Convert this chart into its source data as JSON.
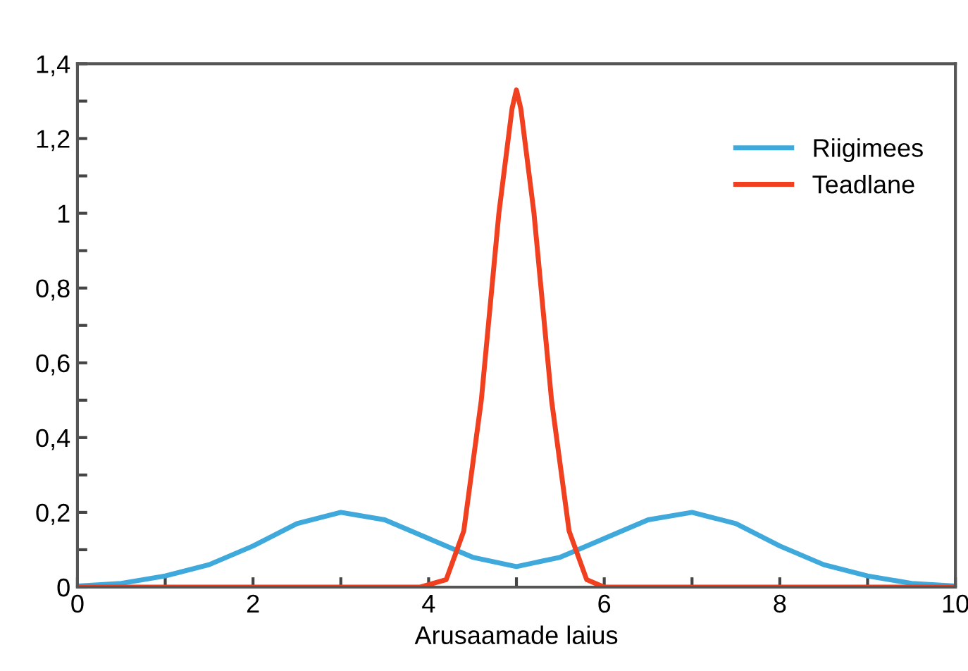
{
  "chart_data": {
    "type": "line",
    "xlabel": "Arusaamade laius",
    "xlim": [
      0,
      10
    ],
    "ylim": [
      0,
      1.4
    ],
    "xticks": [
      0,
      {
        "value": 1,
        "label": null
      },
      2,
      {
        "value": 3,
        "label": null
      },
      4,
      {
        "value": 5,
        "label": null
      },
      6,
      {
        "value": 7,
        "label": null
      },
      8,
      {
        "value": 9,
        "label": null
      },
      10
    ],
    "yticks": [
      0,
      {
        "value": 0.1,
        "label": null
      },
      {
        "value": 0.2,
        "label": "0,2"
      },
      {
        "value": 0.3,
        "label": null
      },
      {
        "value": 0.4,
        "label": "0,4"
      },
      {
        "value": 0.5,
        "label": null
      },
      {
        "value": 0.6,
        "label": "0,6"
      },
      {
        "value": 0.7,
        "label": null
      },
      {
        "value": 0.8,
        "label": "0,8"
      },
      {
        "value": 0.9,
        "label": null
      },
      1,
      {
        "value": 1.1,
        "label": null
      },
      {
        "value": 1.2,
        "label": "1,2"
      },
      {
        "value": 1.3,
        "label": null
      },
      {
        "value": 1.4,
        "label": "1,4"
      }
    ],
    "grid": false,
    "legend": "right",
    "marker": "none",
    "line_style": "solid",
    "series": [
      {
        "name": "Riigimees",
        "color": "#3fa9dc",
        "x": [
          0,
          0.5,
          1,
          1.5,
          2,
          2.5,
          3,
          3.5,
          4,
          4.5,
          5,
          5.5,
          6,
          6.5,
          7,
          7.5,
          8,
          8.5,
          9,
          9.5,
          10
        ],
        "values": [
          0.003,
          0.01,
          0.03,
          0.06,
          0.11,
          0.17,
          0.2,
          0.18,
          0.13,
          0.08,
          0.055,
          0.08,
          0.13,
          0.18,
          0.2,
          0.17,
          0.11,
          0.06,
          0.03,
          0.01,
          0.003
        ]
      },
      {
        "name": "Teadlane",
        "color": "#f0401f",
        "x": [
          0,
          2,
          3.9,
          4.2,
          4.4,
          4.6,
          4.8,
          4.95,
          5,
          5.05,
          5.2,
          5.4,
          5.6,
          5.8,
          6,
          8,
          10
        ],
        "values": [
          0,
          0,
          0,
          0.02,
          0.15,
          0.5,
          1.0,
          1.28,
          1.33,
          1.28,
          1.0,
          0.5,
          0.15,
          0.02,
          0,
          0,
          0
        ]
      }
    ]
  }
}
